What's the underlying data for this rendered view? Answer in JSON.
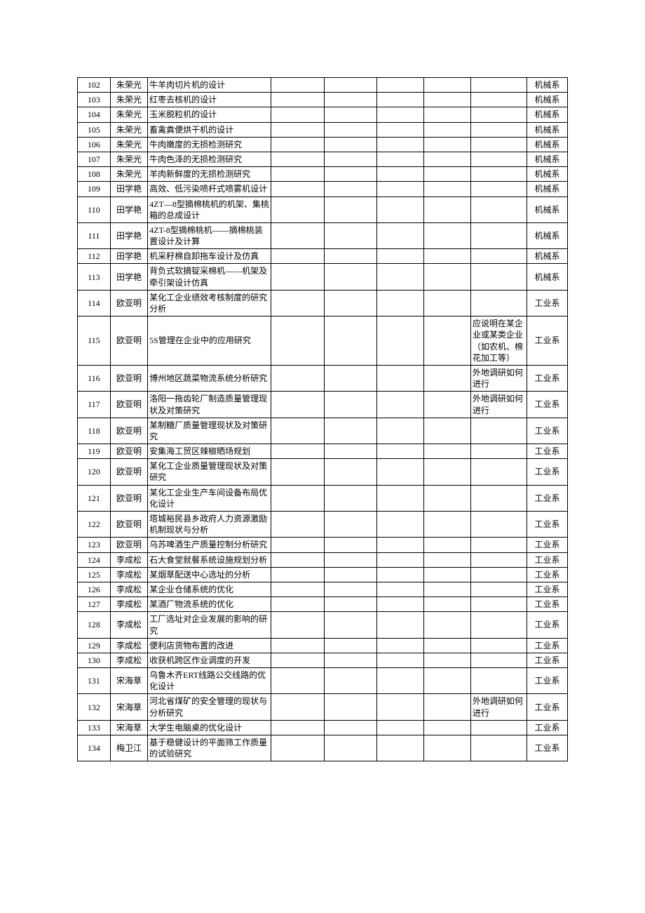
{
  "table": {
    "columns": [
      {
        "class": "c-idx"
      },
      {
        "class": "c-name"
      },
      {
        "class": "c-title"
      },
      {
        "class": "c-4"
      },
      {
        "class": "c-5"
      },
      {
        "class": "c-6"
      },
      {
        "class": "c-7"
      },
      {
        "class": "c-note"
      },
      {
        "class": "c-dept"
      }
    ],
    "rows": [
      {
        "idx": "102",
        "name": "朱荣光",
        "title": "牛羊肉切片机的设计",
        "c4": "",
        "c5": "",
        "c6": "",
        "c7": "",
        "note": "",
        "dept": "机械系"
      },
      {
        "idx": "103",
        "name": "朱荣光",
        "title": "红枣去核机的设计",
        "c4": "",
        "c5": "",
        "c6": "",
        "c7": "",
        "note": "",
        "dept": "机械系"
      },
      {
        "idx": "104",
        "name": "朱荣光",
        "title": "玉米脱粒机的设计",
        "c4": "",
        "c5": "",
        "c6": "",
        "c7": "",
        "note": "",
        "dept": "机械系"
      },
      {
        "idx": "105",
        "name": "朱荣光",
        "title": "畜禽粪便烘干机的设计",
        "c4": "",
        "c5": "",
        "c6": "",
        "c7": "",
        "note": "",
        "dept": "机械系"
      },
      {
        "idx": "106",
        "name": "朱荣光",
        "title": "牛肉嫩度的无损检测研究",
        "c4": "",
        "c5": "",
        "c6": "",
        "c7": "",
        "note": "",
        "dept": "机械系"
      },
      {
        "idx": "107",
        "name": "朱荣光",
        "title": "牛肉色泽的无损检测研究",
        "c4": "",
        "c5": "",
        "c6": "",
        "c7": "",
        "note": "",
        "dept": "机械系"
      },
      {
        "idx": "108",
        "name": "朱荣光",
        "title": "羊肉新鲜度的无损检测研究",
        "c4": "",
        "c5": "",
        "c6": "",
        "c7": "",
        "note": "",
        "dept": "机械系"
      },
      {
        "idx": "109",
        "name": "田学艳",
        "title": "高效、低污染喷杆式喷雾机设计",
        "c4": "",
        "c5": "",
        "c6": "",
        "c7": "",
        "note": "",
        "dept": "机械系"
      },
      {
        "idx": "110",
        "name": "田学艳",
        "title": "4ZT—8型摘棉桃机的机架、集桃箱的总成设计",
        "c4": "",
        "c5": "",
        "c6": "",
        "c7": "",
        "note": "",
        "dept": "机械系"
      },
      {
        "idx": "111",
        "name": "田学艳",
        "title": "4ZT-8型摘棉桃机——摘棉桃装置设计及计算",
        "c4": "",
        "c5": "",
        "c6": "",
        "c7": "",
        "note": "",
        "dept": "机械系"
      },
      {
        "idx": "112",
        "name": "田学艳",
        "title": "机采籽棉自卸拖车设计及仿真",
        "c4": "",
        "c5": "",
        "c6": "",
        "c7": "",
        "note": "",
        "dept": "机械系"
      },
      {
        "idx": "113",
        "name": "田学艳",
        "title": "背负式软摘锭采棉机——机架及牵引架设计仿真",
        "c4": "",
        "c5": "",
        "c6": "",
        "c7": "",
        "note": "",
        "dept": "机械系"
      },
      {
        "idx": "114",
        "name": "欧亚明",
        "title": "某化工企业绩效考核制度的研究分析",
        "c4": "",
        "c5": "",
        "c6": "",
        "c7": "",
        "note": "",
        "dept": "工业系"
      },
      {
        "idx": "115",
        "name": "欧亚明",
        "title": "5S管理在企业中的应用研究",
        "c4": "",
        "c5": "",
        "c6": "",
        "c7": "",
        "note": "应说明在某企业或某类企业（如农机、棉花加工等）",
        "dept": "工业系"
      },
      {
        "idx": "116",
        "name": "欧亚明",
        "title": "博州地区蔬菜物流系统分析研究",
        "c4": "",
        "c5": "",
        "c6": "",
        "c7": "",
        "note": "外地调研如何进行",
        "dept": "工业系"
      },
      {
        "idx": "117",
        "name": "欧亚明",
        "title": "洛阳一拖齿轮厂制造质量管理现状及对策研究",
        "c4": "",
        "c5": "",
        "c6": "",
        "c7": "",
        "note": "外地调研如何进行",
        "dept": "工业系"
      },
      {
        "idx": "118",
        "name": "欧亚明",
        "title": "某制糖厂质量管理现状及对策研究",
        "c4": "",
        "c5": "",
        "c6": "",
        "c7": "",
        "note": "",
        "dept": "工业系"
      },
      {
        "idx": "119",
        "name": "欧亚明",
        "title": "安集海工贸区辣椒晒场规划",
        "c4": "",
        "c5": "",
        "c6": "",
        "c7": "",
        "note": "",
        "dept": "工业系"
      },
      {
        "idx": "120",
        "name": "欧亚明",
        "title": "某化工企业质量管理现状及对策研究",
        "c4": "",
        "c5": "",
        "c6": "",
        "c7": "",
        "note": "",
        "dept": "工业系"
      },
      {
        "idx": "121",
        "name": "欧亚明",
        "title": "某化工企业生产车间设备布局优化设计",
        "c4": "",
        "c5": "",
        "c6": "",
        "c7": "",
        "note": "",
        "dept": "工业系"
      },
      {
        "idx": "122",
        "name": "欧亚明",
        "title": "塔城裕民县乡政府人力资源激励机制现状与分析",
        "c4": "",
        "c5": "",
        "c6": "",
        "c7": "",
        "note": "",
        "dept": "工业系"
      },
      {
        "idx": "123",
        "name": "欧亚明",
        "title": "乌苏啤酒生产质量控制分析研究",
        "c4": "",
        "c5": "",
        "c6": "",
        "c7": "",
        "note": "",
        "dept": "工业系"
      },
      {
        "idx": "124",
        "name": "李成松",
        "title": "石大食堂就餐系统设施规划分析",
        "c4": "",
        "c5": "",
        "c6": "",
        "c7": "",
        "note": "",
        "dept": "工业系"
      },
      {
        "idx": "125",
        "name": "李成松",
        "title": "某烟草配送中心选址的分析",
        "c4": "",
        "c5": "",
        "c6": "",
        "c7": "",
        "note": "",
        "dept": "工业系"
      },
      {
        "idx": "126",
        "name": "李成松",
        "title": "某企业仓储系统的优化",
        "c4": "",
        "c5": "",
        "c6": "",
        "c7": "",
        "note": "",
        "dept": "工业系"
      },
      {
        "idx": "127",
        "name": "李成松",
        "title": "某酒厂物流系统的优化",
        "c4": "",
        "c5": "",
        "c6": "",
        "c7": "",
        "note": "",
        "dept": "工业系"
      },
      {
        "idx": "128",
        "name": "李成松",
        "title": "工厂选址对企业发展的影响的研究",
        "c4": "",
        "c5": "",
        "c6": "",
        "c7": "",
        "note": "",
        "dept": "工业系"
      },
      {
        "idx": "129",
        "name": "李成松",
        "title": "便利店货物布置的改进",
        "c4": "",
        "c5": "",
        "c6": "",
        "c7": "",
        "note": "",
        "dept": "工业系"
      },
      {
        "idx": "130",
        "name": "李成松",
        "title": "收获机跨区作业调度的开发",
        "c4": "",
        "c5": "",
        "c6": "",
        "c7": "",
        "note": "",
        "dept": "工业系"
      },
      {
        "idx": "131",
        "name": "宋海草",
        "title": "乌鲁木齐ERT线路公交线路的优化设计",
        "c4": "",
        "c5": "",
        "c6": "",
        "c7": "",
        "note": "",
        "dept": "工业系"
      },
      {
        "idx": "132",
        "name": "宋海草",
        "title": "河北省煤矿的安全管理的现状与分析研究",
        "c4": "",
        "c5": "",
        "c6": "",
        "c7": "",
        "note": "外地调研如何进行",
        "dept": "工业系"
      },
      {
        "idx": "133",
        "name": "宋海草",
        "title": "大学生电脑桌的优化设计",
        "c4": "",
        "c5": "",
        "c6": "",
        "c7": "",
        "note": "",
        "dept": "工业系"
      },
      {
        "idx": "134",
        "name": "梅卫江",
        "title": "基于稳健设计的平面筛工作质量的试验研究",
        "c4": "",
        "c5": "",
        "c6": "",
        "c7": "",
        "note": "",
        "dept": "工业系"
      }
    ]
  }
}
